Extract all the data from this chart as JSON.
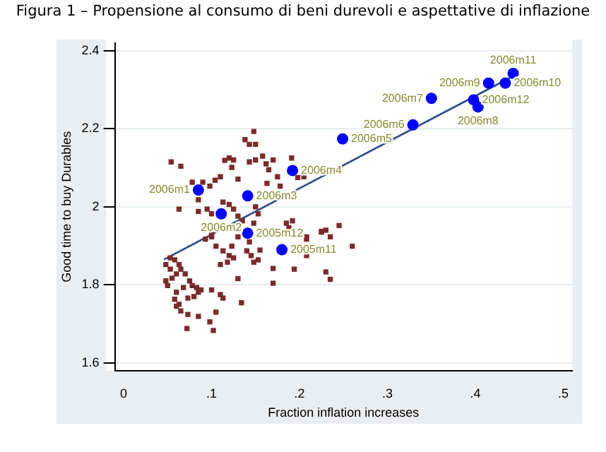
{
  "chart_data": {
    "type": "scatter",
    "title": "Figura 1 – Propensione al consumo di beni durevoli e aspettative di inflazione",
    "xlabel": "Fraction inflation increases",
    "ylabel": "Good time to buy Durables",
    "xlim": [
      -0.01,
      0.51
    ],
    "ylim": [
      1.58,
      2.42
    ],
    "xticks": [
      0,
      {
        "value": 0.1,
        "label": ".1"
      },
      {
        "value": 0.2,
        "label": ".2"
      },
      {
        "value": 0.3,
        "label": ".3"
      },
      {
        "value": 0.4,
        "label": ".4"
      },
      {
        "value": 0.5,
        "label": ".5"
      }
    ],
    "yticks": [
      1.6,
      1.8,
      2,
      2.2,
      2.4
    ],
    "grid": "y",
    "legend": false,
    "series": [
      {
        "type": "scatter",
        "marker": "square",
        "color": "#7b2b2b",
        "x": [
          0.054,
          0.065,
          0.078,
          0.09,
          0.098,
          0.104,
          0.11,
          0.115,
          0.12,
          0.125,
          0.123,
          0.13,
          0.138,
          0.143,
          0.148,
          0.15,
          0.143,
          0.15,
          0.158,
          0.162,
          0.165,
          0.17,
          0.175,
          0.178,
          0.163,
          0.191,
          0.198,
          0.205,
          0.063,
          0.085,
          0.085,
          0.095,
          0.1,
          0.113,
          0.12,
          0.125,
          0.13,
          0.135,
          0.15,
          0.153,
          0.148,
          0.185,
          0.192,
          0.188,
          0.208,
          0.225,
          0.23,
          0.235,
          0.245,
          0.1,
          0.093,
          0.13,
          0.143,
          0.1,
          0.105,
          0.113,
          0.12,
          0.11,
          0.123,
          0.125,
          0.118,
          0.14,
          0.145,
          0.148,
          0.153,
          0.155,
          0.17,
          0.17,
          0.194,
          0.208,
          0.208,
          0.225,
          0.23,
          0.235,
          0.26,
          0.13,
          0.134,
          0.113,
          0.105,
          0.098,
          0.102,
          0.085,
          0.073,
          0.072,
          0.065,
          0.06,
          0.058,
          0.063,
          0.1,
          0.085,
          0.08,
          0.073,
          0.048,
          0.05,
          0.055,
          0.053,
          0.06,
          0.065,
          0.07,
          0.075,
          0.078,
          0.083,
          0.088,
          0.068,
          0.06,
          0.053,
          0.058,
          0.063,
          0.048,
          0.11
        ],
        "values": [
          2.115,
          2.104,
          2.063,
          2.063,
          2.053,
          2.068,
          2.077,
          2.119,
          2.125,
          2.12,
          2.101,
          2.071,
          2.172,
          2.16,
          2.193,
          2.16,
          2.115,
          2.12,
          2.13,
          2.11,
          2.095,
          2.12,
          2.077,
          2.053,
          2.06,
          2.125,
          2.075,
          2.077,
          1.994,
          2.018,
          1.988,
          1.994,
          1.982,
          2.012,
          2.006,
          1.994,
          1.976,
          1.964,
          2.0,
          1.982,
          1.958,
          1.958,
          1.964,
          1.946,
          1.923,
          1.935,
          1.94,
          1.923,
          1.952,
          1.923,
          1.917,
          1.923,
          1.91,
          1.929,
          1.899,
          1.887,
          1.875,
          1.852,
          1.899,
          1.869,
          1.858,
          1.887,
          1.875,
          1.858,
          1.864,
          1.889,
          1.842,
          1.804,
          1.84,
          1.917,
          1.875,
          1.937,
          1.833,
          1.814,
          1.899,
          1.816,
          1.754,
          1.766,
          1.73,
          1.705,
          1.683,
          1.719,
          1.724,
          1.688,
          1.733,
          1.745,
          1.763,
          1.75,
          1.787,
          1.781,
          1.77,
          1.766,
          1.81,
          1.798,
          1.817,
          1.84,
          1.828,
          1.84,
          1.828,
          1.81,
          1.798,
          1.793,
          1.787,
          1.793,
          1.781,
          1.869,
          1.864,
          1.852,
          1.852,
          1.775
        ]
      },
      {
        "type": "scatter",
        "marker": "circle",
        "color": "#0000ff",
        "x": [
          0.18,
          0.141,
          0.085,
          0.111,
          0.141,
          0.192,
          0.249,
          0.329,
          0.35,
          0.403,
          0.415,
          0.434,
          0.443,
          0.398
        ],
        "values": [
          1.89,
          1.932,
          2.043,
          1.982,
          2.028,
          2.093,
          2.174,
          2.21,
          2.278,
          2.256,
          2.317,
          2.317,
          2.342,
          2.274
        ]
      },
      {
        "type": "line",
        "marker": "none",
        "color": "#2b4c8c",
        "x": [
          0.046,
          0.443
        ],
        "values": [
          1.865,
          2.335
        ]
      }
    ],
    "annotations": [
      {
        "text": "2005m11",
        "x": 0.18,
        "y": 1.89
      },
      {
        "text": "2005m12",
        "x": 0.141,
        "y": 1.932
      },
      {
        "text": "2006m1",
        "x": 0.085,
        "y": 2.043
      },
      {
        "text": "2006m2",
        "x": 0.111,
        "y": 1.982
      },
      {
        "text": "2006m3",
        "x": 0.141,
        "y": 2.028
      },
      {
        "text": "2006m4",
        "x": 0.192,
        "y": 2.093
      },
      {
        "text": "2006m5",
        "x": 0.249,
        "y": 2.174
      },
      {
        "text": "2006m6",
        "x": 0.329,
        "y": 2.21
      },
      {
        "text": "2006m7",
        "x": 0.35,
        "y": 2.278
      },
      {
        "text": "2006m8",
        "x": 0.403,
        "y": 2.256
      },
      {
        "text": "2006m9",
        "x": 0.415,
        "y": 2.317
      },
      {
        "text": "2006m10",
        "x": 0.434,
        "y": 2.317
      },
      {
        "text": "2006m11",
        "x": 0.443,
        "y": 2.342
      },
      {
        "text": "2006m12",
        "x": 0.398,
        "y": 2.274
      }
    ]
  }
}
